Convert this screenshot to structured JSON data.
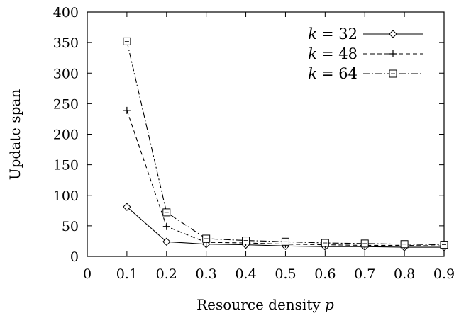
{
  "chart_data": {
    "type": "line",
    "xlabel": "Resource density",
    "xlabel_var": "p",
    "ylabel": "Update span",
    "xlim": [
      0,
      0.9
    ],
    "ylim": [
      0,
      400
    ],
    "x_ticks": [
      "0",
      "0.1",
      "0.2",
      "0.3",
      "0.4",
      "0.5",
      "0.6",
      "0.7",
      "0.8",
      "0.9"
    ],
    "y_ticks": [
      "0",
      "50",
      "100",
      "150",
      "200",
      "250",
      "300",
      "350",
      "400"
    ],
    "grid": false,
    "legend_position": "top-right",
    "x": [
      0.1,
      0.2,
      0.3,
      0.4,
      0.5,
      0.6,
      0.7,
      0.8,
      0.9
    ],
    "series": [
      {
        "name": "k = 32",
        "legend_var": "k",
        "legend_value": "= 32",
        "marker": "diamond",
        "dash": "solid",
        "values": [
          81,
          24,
          20,
          19,
          17,
          16,
          16,
          15,
          15
        ]
      },
      {
        "name": "k = 48",
        "legend_var": "k",
        "legend_value": "= 48",
        "marker": "plus",
        "dash": "dashed",
        "values": [
          239,
          49,
          23,
          22,
          20,
          19,
          18,
          18,
          17
        ]
      },
      {
        "name": "k = 64",
        "legend_var": "k",
        "legend_value": "= 64",
        "marker": "square",
        "dash": "dashdot",
        "values": [
          352,
          72,
          29,
          26,
          24,
          22,
          21,
          20,
          19
        ]
      }
    ]
  }
}
